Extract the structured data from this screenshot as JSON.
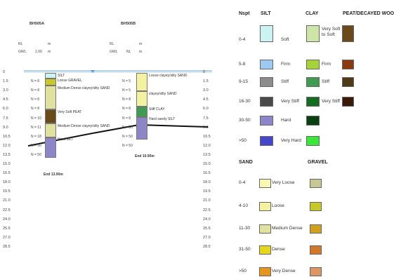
{
  "boreholes": [
    {
      "id": "BH505A",
      "rl_label": "RL",
      "rl_unit": "m",
      "gwl_label": "GWL",
      "gwl_value": "1.00",
      "gwl_unit": "m",
      "n_values": [
        "N = 8",
        "N = 8",
        "N = 8",
        "N = 8",
        "N = 10",
        "N = 11",
        "N = 18",
        "N = 50",
        "N = 50"
      ],
      "layers": [
        {
          "label": "SILT",
          "from": 0,
          "to": 0.9,
          "soil": "silt",
          "nspt": "0-4"
        },
        {
          "label": "Loose GRAVEL",
          "from": 0.9,
          "to": 2.1,
          "soil": "gravel",
          "nspt": "4-10"
        },
        {
          "label": "Medium Dense clayey/silty SAND",
          "from": 2.1,
          "to": 6.0,
          "soil": "sand",
          "nspt": "11-30"
        },
        {
          "label": "Very Soft PEAT",
          "from": 6.0,
          "to": 8.3,
          "soil": "peat",
          "nspt": "0-4"
        },
        {
          "label": "Medium Dense clayey/silty SAND",
          "from": 8.3,
          "to": 10.5,
          "soil": "sand",
          "nspt": "11-30"
        },
        {
          "label": "Hard SILT",
          "from": 10.5,
          "to": 13.9,
          "soil": "silt",
          "nspt": "30-50"
        }
      ],
      "end_label": "End 13.90m"
    },
    {
      "id": "BH505B",
      "rl_label": "RL",
      "rl_unit": "m",
      "gwl_label": "GWL",
      "gwl_value": "NL",
      "gwl_unit": "m",
      "n_values": [
        "N = 5",
        "N = 5",
        "N = 8",
        "N = 8",
        "N = 8",
        "N = 50",
        "N = 50",
        "N = 50"
      ],
      "layers": [
        {
          "label": "Loose clayey/silty SAND",
          "from": 0,
          "to": 3.0,
          "soil": "sand",
          "nspt": "4-10"
        },
        {
          "label": "clayey/silty SAND",
          "from": 3.0,
          "to": 5.5,
          "soil": "sand",
          "nspt": "4-10"
        },
        {
          "label": "Stiff CLAY",
          "from": 5.5,
          "to": 7.2,
          "soil": "clay",
          "nspt": "9-15"
        },
        {
          "label": "Hard sandy SILT",
          "from": 7.2,
          "to": 10.9,
          "soil": "silt",
          "nspt": "30-50"
        }
      ],
      "end_label": "End 10.90m"
    }
  ],
  "depth_scale": [
    "0",
    "1.5",
    "3.0",
    "4.5",
    "6.0",
    "7.5",
    "9.0",
    "10.5",
    "12.0",
    "13.5",
    "15.0",
    "16.5",
    "18.0",
    "19.5",
    "21.0",
    "22.5",
    "24.0",
    "25.5",
    "27.0",
    "28.5"
  ],
  "legend": {
    "nspt_header": "Nspt",
    "silt_clay": {
      "headers": {
        "silt": "SILT",
        "clay": "CLAY",
        "peat": "PEAT/DECAYED WOO"
      },
      "rows": [
        {
          "nspt": "0-4",
          "silt_label": "Soft",
          "clay_label": "Very Soft to Soft",
          "silt_color": "#cdf2f2",
          "clay_color": "#cde6a8",
          "peat_color": "#6b4a1a"
        },
        {
          "nspt": "5-8",
          "silt_label": "Firm",
          "clay_label": "Firm",
          "silt_color": "#9ccaf0",
          "clay_color": "#a6d23a",
          "peat_color": "#8a3a10"
        },
        {
          "nspt": "9-15",
          "silt_label": "Stiff",
          "clay_label": "Stiff",
          "silt_color": "#8c8c8c",
          "clay_color": "#3f9a52",
          "peat_color": "#4e3a18"
        },
        {
          "nspt": "16-30",
          "silt_label": "Very Stiff",
          "clay_label": "Very Stiff",
          "silt_color": "#4a4a4a",
          "clay_color": "#156b20",
          "peat_color": "#3a1a08"
        },
        {
          "nspt": "30-50",
          "silt_label": "Hard",
          "clay_label": "",
          "silt_color": "#8c86c8",
          "clay_color": "#0a3f12",
          "peat_color": ""
        },
        {
          "nspt": ">50",
          "silt_label": "Very Hard",
          "clay_label": "",
          "silt_color": "#4646c8",
          "clay_color": "#39e639",
          "peat_color": ""
        }
      ]
    },
    "sand_gravel": {
      "headers": {
        "sand": "SAND",
        "gravel": "GRAVEL"
      },
      "rows": [
        {
          "nspt": "0-4",
          "label": "Very Loose",
          "sand_color": "#f8f8b4",
          "gravel_color": "#c8c896"
        },
        {
          "nspt": "4-10",
          "label": "Loose",
          "sand_color": "#f2f2a0",
          "gravel_color": "#c8c828"
        },
        {
          "nspt": "11-30",
          "label": "Medium Dense",
          "sand_color": "#e2e2a0",
          "gravel_color": "#d2a020"
        },
        {
          "nspt": "31-50",
          "label": "Dense",
          "sand_color": "#e6d61e",
          "gravel_color": "#d27828"
        },
        {
          "nspt": ">50",
          "label": "Very Dense",
          "sand_color": "#e6961e",
          "gravel_color": "#dc9664"
        }
      ]
    }
  }
}
